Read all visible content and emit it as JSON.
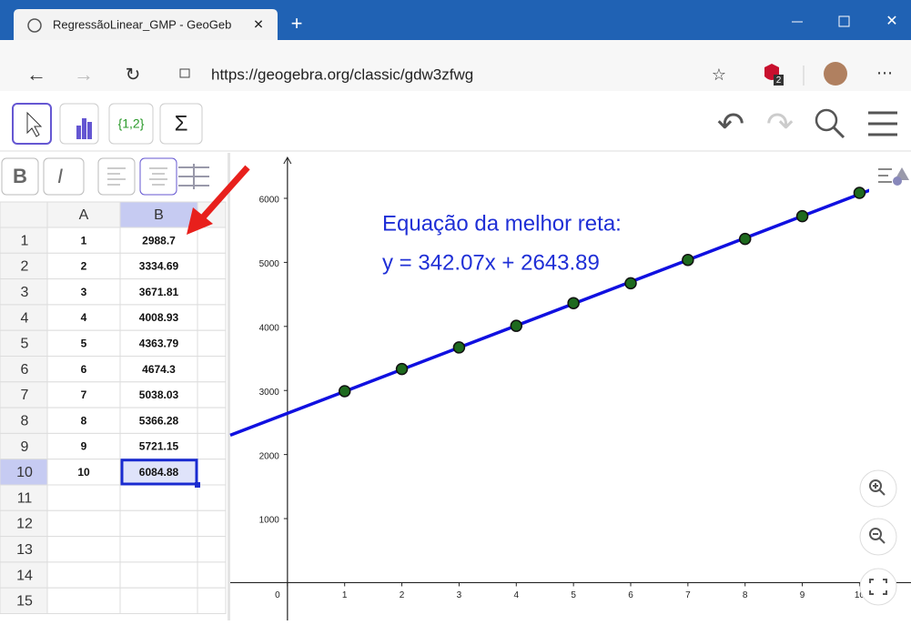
{
  "browser": {
    "tab_title": "RegressãoLinear_GMP - GeoGeb",
    "url": "https://geogebra.org/classic/gdw3zfwg",
    "extension_badge": "2"
  },
  "toolbar": {
    "list_tool": "{1,2}",
    "sum_tool": "Σ"
  },
  "style_bar": {
    "bold": "B",
    "italic": "I"
  },
  "spreadsheet": {
    "columns": [
      "A",
      "B"
    ],
    "row_numbers": [
      1,
      2,
      3,
      4,
      5,
      6,
      7,
      8,
      9,
      10,
      11,
      12,
      13,
      14,
      15
    ],
    "rows": [
      {
        "a": 1,
        "b": 2988.7
      },
      {
        "a": 2,
        "b": 3334.69
      },
      {
        "a": 3,
        "b": 3671.81
      },
      {
        "a": 4,
        "b": 4008.93
      },
      {
        "a": 5,
        "b": 4363.79
      },
      {
        "a": 6,
        "b": 4674.3
      },
      {
        "a": 7,
        "b": 5038.03
      },
      {
        "a": 8,
        "b": 5366.28
      },
      {
        "a": 9,
        "b": 5721.15
      },
      {
        "a": 10,
        "b": 6084.88
      }
    ]
  },
  "graphics": {
    "equation_title": "Equação da melhor reta:",
    "equation": "y = 342.07x + 2643.89",
    "line": {
      "slope": 342.07,
      "intercept": 2643.89
    },
    "xlim": [
      -1,
      10.9
    ],
    "ylim": [
      -590,
      6710
    ],
    "xticks": [
      0,
      1,
      2,
      3,
      4,
      5,
      6,
      7,
      8,
      9,
      10
    ],
    "yticks": [
      1000,
      2000,
      3000,
      4000,
      5000,
      6000
    ]
  }
}
